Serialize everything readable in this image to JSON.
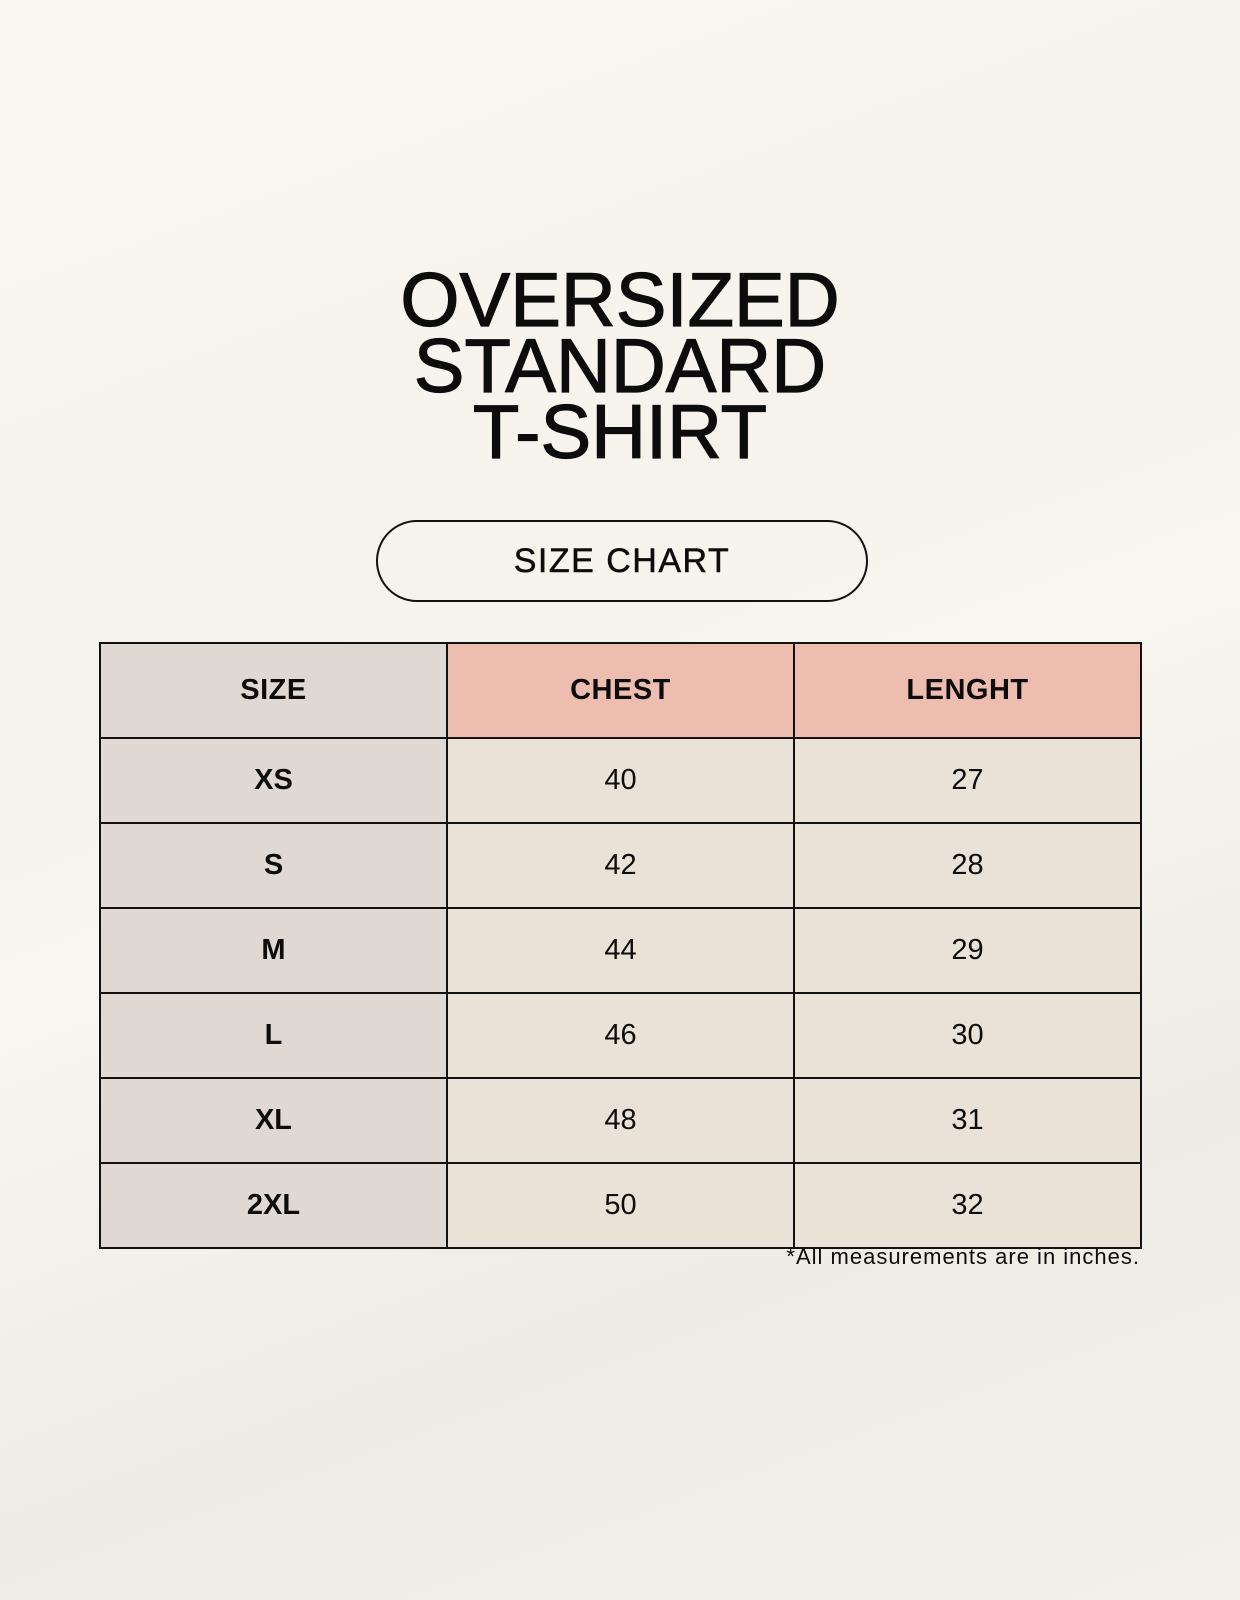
{
  "title_lines": [
    "OVERSIZED",
    "STANDARD",
    "T-SHIRT"
  ],
  "badge": "SIZE CHART",
  "table": {
    "headers": [
      "SIZE",
      "CHEST",
      "LENGHT"
    ],
    "rows": [
      [
        "XS",
        "40",
        "27"
      ],
      [
        "S",
        "42",
        "28"
      ],
      [
        "M",
        "44",
        "29"
      ],
      [
        "L",
        "46",
        "30"
      ],
      [
        "XL",
        "48",
        "31"
      ],
      [
        "2XL",
        "50",
        "32"
      ]
    ]
  },
  "note": "*All measurements are in inches.",
  "colors": {
    "header_accent": "#edbdaf",
    "size_column": "#e0d9d3",
    "value_cells": "#eae2d7"
  }
}
